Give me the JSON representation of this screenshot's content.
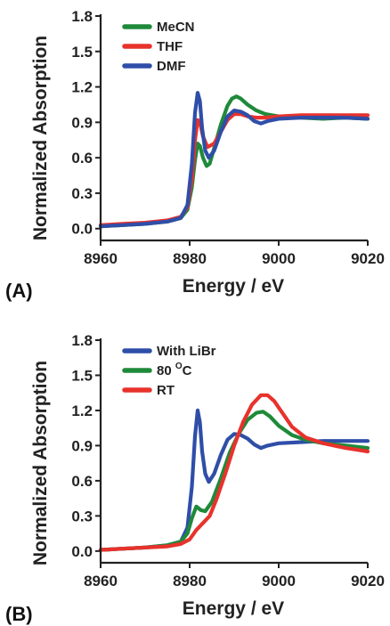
{
  "chart_data": [
    {
      "type": "line",
      "panel_label": "(A)",
      "xlabel": "Energy / eV",
      "ylabel": "Normalized  Absorption",
      "xlim": [
        8960,
        9020
      ],
      "ylim": [
        -0.1,
        1.8
      ],
      "xticks": [
        "8960",
        "8980",
        "9000",
        "9020"
      ],
      "yticks": [
        "0.0",
        "0.3",
        "0.6",
        "0.9",
        "1.2",
        "1.5",
        "1.8"
      ],
      "xtick_values": [
        8960,
        8980,
        9000,
        9020
      ],
      "ytick_values": [
        0.0,
        0.3,
        0.6,
        0.9,
        1.2,
        1.5,
        1.8
      ],
      "legend_position": "top-left",
      "series": [
        {
          "name": "MeCN",
          "color": "#1e8a3a",
          "x": [
            8960,
            8965,
            8970,
            8975,
            8978,
            8979.5,
            8980.5,
            8981.2,
            8981.8,
            8982.3,
            8983,
            8983.8,
            8984.5,
            8985.5,
            8987,
            8988.5,
            8989.5,
            8990.5,
            8991.5,
            8993,
            8995,
            8997,
            9000,
            9005,
            9010,
            9015,
            9020
          ],
          "y": [
            0.02,
            0.03,
            0.04,
            0.06,
            0.09,
            0.16,
            0.35,
            0.58,
            0.72,
            0.7,
            0.6,
            0.53,
            0.55,
            0.68,
            0.88,
            1.04,
            1.1,
            1.12,
            1.1,
            1.05,
            1.0,
            0.97,
            0.95,
            0.94,
            0.93,
            0.94,
            0.93
          ]
        },
        {
          "name": "THF",
          "color": "#e8322c",
          "x": [
            8960,
            8965,
            8970,
            8975,
            8978,
            8979.5,
            8980.5,
            8981.2,
            8981.8,
            8982.3,
            8983,
            8984,
            8985.5,
            8987,
            8988.5,
            8990,
            8991.5,
            8993,
            8995,
            8997,
            9000,
            9005,
            9010,
            9015,
            9020
          ],
          "y": [
            0.03,
            0.04,
            0.05,
            0.07,
            0.1,
            0.18,
            0.42,
            0.75,
            0.92,
            0.9,
            0.78,
            0.69,
            0.72,
            0.82,
            0.92,
            0.97,
            0.97,
            0.95,
            0.94,
            0.94,
            0.95,
            0.96,
            0.96,
            0.96,
            0.96
          ]
        },
        {
          "name": "DMF",
          "color": "#2f4ea8",
          "x": [
            8960,
            8965,
            8970,
            8975,
            8978,
            8979.5,
            8980.5,
            8981.2,
            8981.8,
            8982.3,
            8982.8,
            8983.5,
            8984.3,
            8985.5,
            8987,
            8988.5,
            8990,
            8991.5,
            8993,
            8994.5,
            8996,
            8997.5,
            9000,
            9005,
            9010,
            9015,
            9020
          ],
          "y": [
            0.02,
            0.03,
            0.04,
            0.06,
            0.09,
            0.2,
            0.55,
            0.98,
            1.15,
            1.08,
            0.85,
            0.66,
            0.6,
            0.66,
            0.82,
            0.95,
            1.0,
            0.99,
            0.96,
            0.91,
            0.89,
            0.91,
            0.93,
            0.94,
            0.94,
            0.94,
            0.93
          ]
        }
      ]
    },
    {
      "type": "line",
      "panel_label": "(B)",
      "xlabel": "Energy / eV",
      "ylabel": "Normalized  Absorption",
      "xlim": [
        8960,
        9020
      ],
      "ylim": [
        -0.1,
        1.8
      ],
      "xticks": [
        "8960",
        "8980",
        "9000",
        "9020"
      ],
      "yticks": [
        "0.0",
        "0.3",
        "0.6",
        "0.9",
        "1.2",
        "1.5",
        "1.8"
      ],
      "xtick_values": [
        8960,
        8980,
        9000,
        9020
      ],
      "ytick_values": [
        0.0,
        0.3,
        0.6,
        0.9,
        1.2,
        1.5,
        1.8
      ],
      "legend_position": "top-left",
      "series": [
        {
          "name": "With LiBr",
          "color": "#2f4ea8",
          "x": [
            8960,
            8965,
            8970,
            8975,
            8978,
            8979.5,
            8980.5,
            8981.2,
            8981.8,
            8982.3,
            8982.8,
            8983.5,
            8984.3,
            8985.5,
            8987,
            8988.5,
            8990,
            8991.5,
            8993,
            8994.5,
            8996,
            8997.5,
            9000,
            9005,
            9010,
            9015,
            9020
          ],
          "y": [
            0.01,
            0.02,
            0.03,
            0.05,
            0.08,
            0.2,
            0.55,
            0.98,
            1.2,
            1.1,
            0.85,
            0.66,
            0.59,
            0.66,
            0.82,
            0.95,
            1.0,
            0.99,
            0.96,
            0.91,
            0.88,
            0.9,
            0.92,
            0.93,
            0.94,
            0.94,
            0.94
          ]
        },
        {
          "name": "80 ",
          "name_sup": "O",
          "name_suffix": "C",
          "color": "#1e8a3a",
          "x": [
            8960,
            8965,
            8970,
            8975,
            8978,
            8979.5,
            8980.5,
            8981.5,
            8982.5,
            8983.5,
            8985,
            8987,
            8989,
            8991,
            8993,
            8995,
            8996.5,
            8998,
            9000,
            9003,
            9006,
            9010,
            9015,
            9020
          ],
          "y": [
            0.01,
            0.02,
            0.03,
            0.05,
            0.08,
            0.15,
            0.28,
            0.38,
            0.35,
            0.34,
            0.42,
            0.62,
            0.84,
            1.0,
            1.12,
            1.18,
            1.19,
            1.15,
            1.07,
            0.99,
            0.95,
            0.92,
            0.9,
            0.88
          ]
        },
        {
          "name": "RT",
          "color": "#e8322c",
          "x": [
            8960,
            8965,
            8970,
            8975,
            8978,
            8980,
            8981.5,
            8983,
            8984.5,
            8986,
            8988,
            8990,
            8992,
            8994,
            8996,
            8997.5,
            8999,
            9001,
            9003,
            9006,
            9010,
            9015,
            9020
          ],
          "y": [
            0.01,
            0.02,
            0.03,
            0.04,
            0.06,
            0.1,
            0.18,
            0.24,
            0.3,
            0.44,
            0.66,
            0.9,
            1.1,
            1.25,
            1.33,
            1.33,
            1.28,
            1.17,
            1.06,
            0.97,
            0.92,
            0.88,
            0.85
          ]
        }
      ]
    }
  ]
}
